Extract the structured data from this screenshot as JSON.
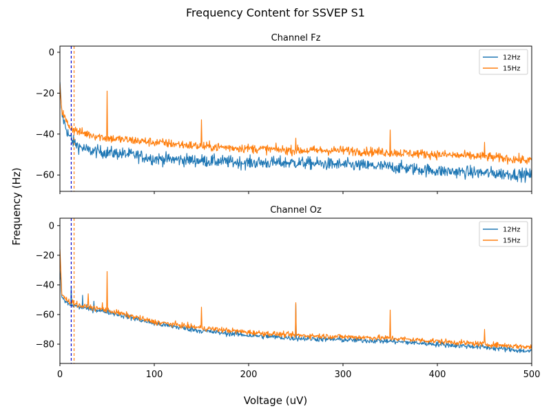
{
  "figure": {
    "title": "Frequency Content for SSVEP S1",
    "xlabel": "Voltage (uV)",
    "ylabel": "Frequency (Hz)"
  },
  "chart_data": [
    {
      "type": "line",
      "title": "Channel Fz",
      "xlim": [
        0,
        500
      ],
      "ylim": [
        -68,
        3
      ],
      "xticks": [
        0,
        100,
        200,
        300,
        400,
        500
      ],
      "yticks": [
        0,
        -20,
        -40,
        -60
      ],
      "show_xtick_labels": false,
      "legend": "top-right",
      "grid": false,
      "vlines": [
        {
          "x": 12,
          "color": "#0000cc",
          "style": "dashed"
        },
        {
          "x": 15,
          "color": "#ff7f0e",
          "style": "dashed"
        }
      ],
      "series": [
        {
          "name": "12Hz",
          "color": "#1f77b4",
          "x": [
            0,
            2,
            5,
            8,
            12,
            20,
            30,
            50,
            75,
            100,
            150,
            200,
            250,
            300,
            350,
            400,
            450,
            500
          ],
          "y": [
            -16,
            -30,
            -35,
            -39,
            -43,
            -46,
            -48,
            -49,
            -50,
            -52,
            -53,
            -54,
            -54,
            -55,
            -56,
            -58,
            -59,
            -60
          ],
          "noise": 3,
          "peaks": [
            {
              "x": 12,
              "y": -40
            }
          ]
        },
        {
          "name": "15Hz",
          "color": "#ff7f0e",
          "x": [
            0,
            2,
            5,
            8,
            12,
            20,
            30,
            50,
            75,
            100,
            150,
            200,
            250,
            300,
            350,
            400,
            450,
            500
          ],
          "y": [
            -16,
            -28,
            -32,
            -35,
            -37,
            -39,
            -40,
            -42,
            -43,
            -44,
            -46,
            -47,
            -48,
            -48,
            -49,
            -50,
            -51,
            -53
          ],
          "noise": 2.2,
          "peaks": [
            {
              "x": 50,
              "y": -19
            },
            {
              "x": 150,
              "y": -33
            },
            {
              "x": 250,
              "y": -42
            },
            {
              "x": 350,
              "y": -38
            },
            {
              "x": 450,
              "y": -44
            }
          ]
        }
      ]
    },
    {
      "type": "line",
      "title": "Channel Oz",
      "xlim": [
        0,
        500
      ],
      "ylim": [
        -93,
        5
      ],
      "xticks": [
        0,
        100,
        200,
        300,
        400,
        500
      ],
      "yticks": [
        0,
        -20,
        -40,
        -60,
        -80
      ],
      "show_xtick_labels": true,
      "legend": "top-right",
      "grid": false,
      "vlines": [
        {
          "x": 12,
          "color": "#0000cc",
          "style": "dashed"
        },
        {
          "x": 15,
          "color": "#ff7f0e",
          "style": "dashed"
        }
      ],
      "series": [
        {
          "name": "12Hz",
          "color": "#1f77b4",
          "x": [
            0,
            2,
            5,
            10,
            15,
            20,
            30,
            50,
            75,
            100,
            150,
            200,
            250,
            300,
            350,
            400,
            450,
            500
          ],
          "y": [
            -30,
            -48,
            -51,
            -53,
            -54,
            -55,
            -56,
            -58,
            -62,
            -66,
            -71,
            -74,
            -76,
            -77,
            -78,
            -80,
            -82,
            -85
          ],
          "noise": 1.8,
          "peaks": [
            {
              "x": 12,
              "y": -41
            },
            {
              "x": 24,
              "y": -47
            },
            {
              "x": 36,
              "y": -51
            },
            {
              "x": 250,
              "y": -53
            }
          ]
        },
        {
          "name": "15Hz",
          "color": "#ff7f0e",
          "x": [
            0,
            2,
            5,
            10,
            15,
            20,
            30,
            50,
            75,
            100,
            150,
            200,
            250,
            300,
            350,
            400,
            450,
            500
          ],
          "y": [
            -16,
            -46,
            -49,
            -51,
            -52,
            -54,
            -55,
            -57,
            -61,
            -65,
            -69,
            -72,
            -74,
            -75,
            -76,
            -78,
            -80,
            -82
          ],
          "noise": 1.8,
          "peaks": [
            {
              "x": 30,
              "y": -46
            },
            {
              "x": 45,
              "y": -52
            },
            {
              "x": 50,
              "y": -31
            },
            {
              "x": 150,
              "y": -55
            },
            {
              "x": 250,
              "y": -52
            },
            {
              "x": 350,
              "y": -57
            },
            {
              "x": 450,
              "y": -70
            }
          ]
        }
      ]
    }
  ]
}
